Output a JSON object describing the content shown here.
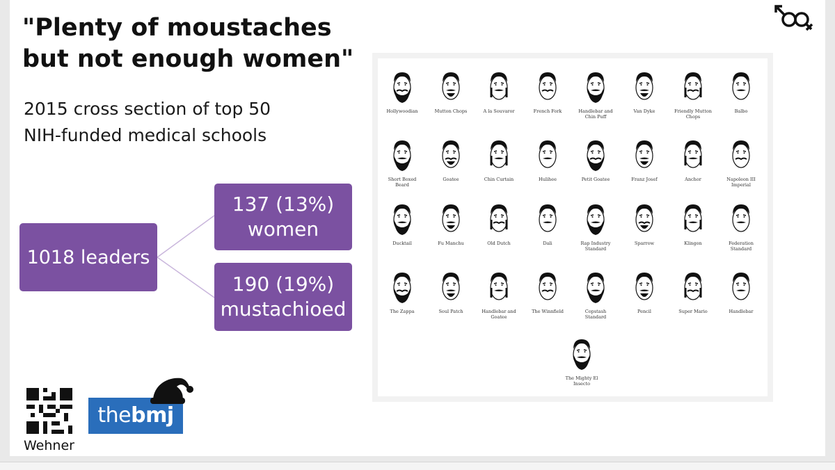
{
  "slide": {
    "title_line1": "\"Plenty of moustaches",
    "title_line2": "but not enough women\"",
    "subtitle_line1": "2015 cross section of top 50",
    "subtitle_line2": "NIH-funded medical schools",
    "boxes": {
      "leaders": "1018 leaders",
      "women_count": "137 (13%)",
      "women_label": "women",
      "mustache_count": "190 (19%)",
      "mustache_label": "mustachioed"
    },
    "box_color": "#7b51a1",
    "author": "Wehner",
    "logo": {
      "prefix": "the",
      "suffix": "bmj",
      "color": "#2a6ebb"
    },
    "icons": [
      "gender-symbols-icon",
      "qr-code-icon",
      "santa-hat-icon"
    ]
  },
  "moustache_chart": {
    "rows": [
      [
        "Hollywoodian",
        "Mutton Chops",
        "A la Souvaror",
        "French Fork",
        "Handlebar and Chin Puff",
        "Van Dyke",
        "Friendly Mutton Chops",
        "Balbo"
      ],
      [
        "Short Boxed Beard",
        "Goatee",
        "Chin Curtain",
        "Hulihee",
        "Petit Goatee",
        "Franz Josef",
        "Anchor",
        "Napoleon III Imperial"
      ],
      [
        "Ducktail",
        "Fu Manchu",
        "Old Dutch",
        "Dali",
        "Rap Industry Standard",
        "Sparrow",
        "Klingon",
        "Federation Standard"
      ],
      [
        "The Zappa",
        "Soul Patch",
        "Handlebar and Goatee",
        "The Winnfield",
        "Copstash Standard",
        "Pencil",
        "Super Mario",
        "Handlebar"
      ],
      [
        "The Mighty El Insecto"
      ]
    ]
  }
}
